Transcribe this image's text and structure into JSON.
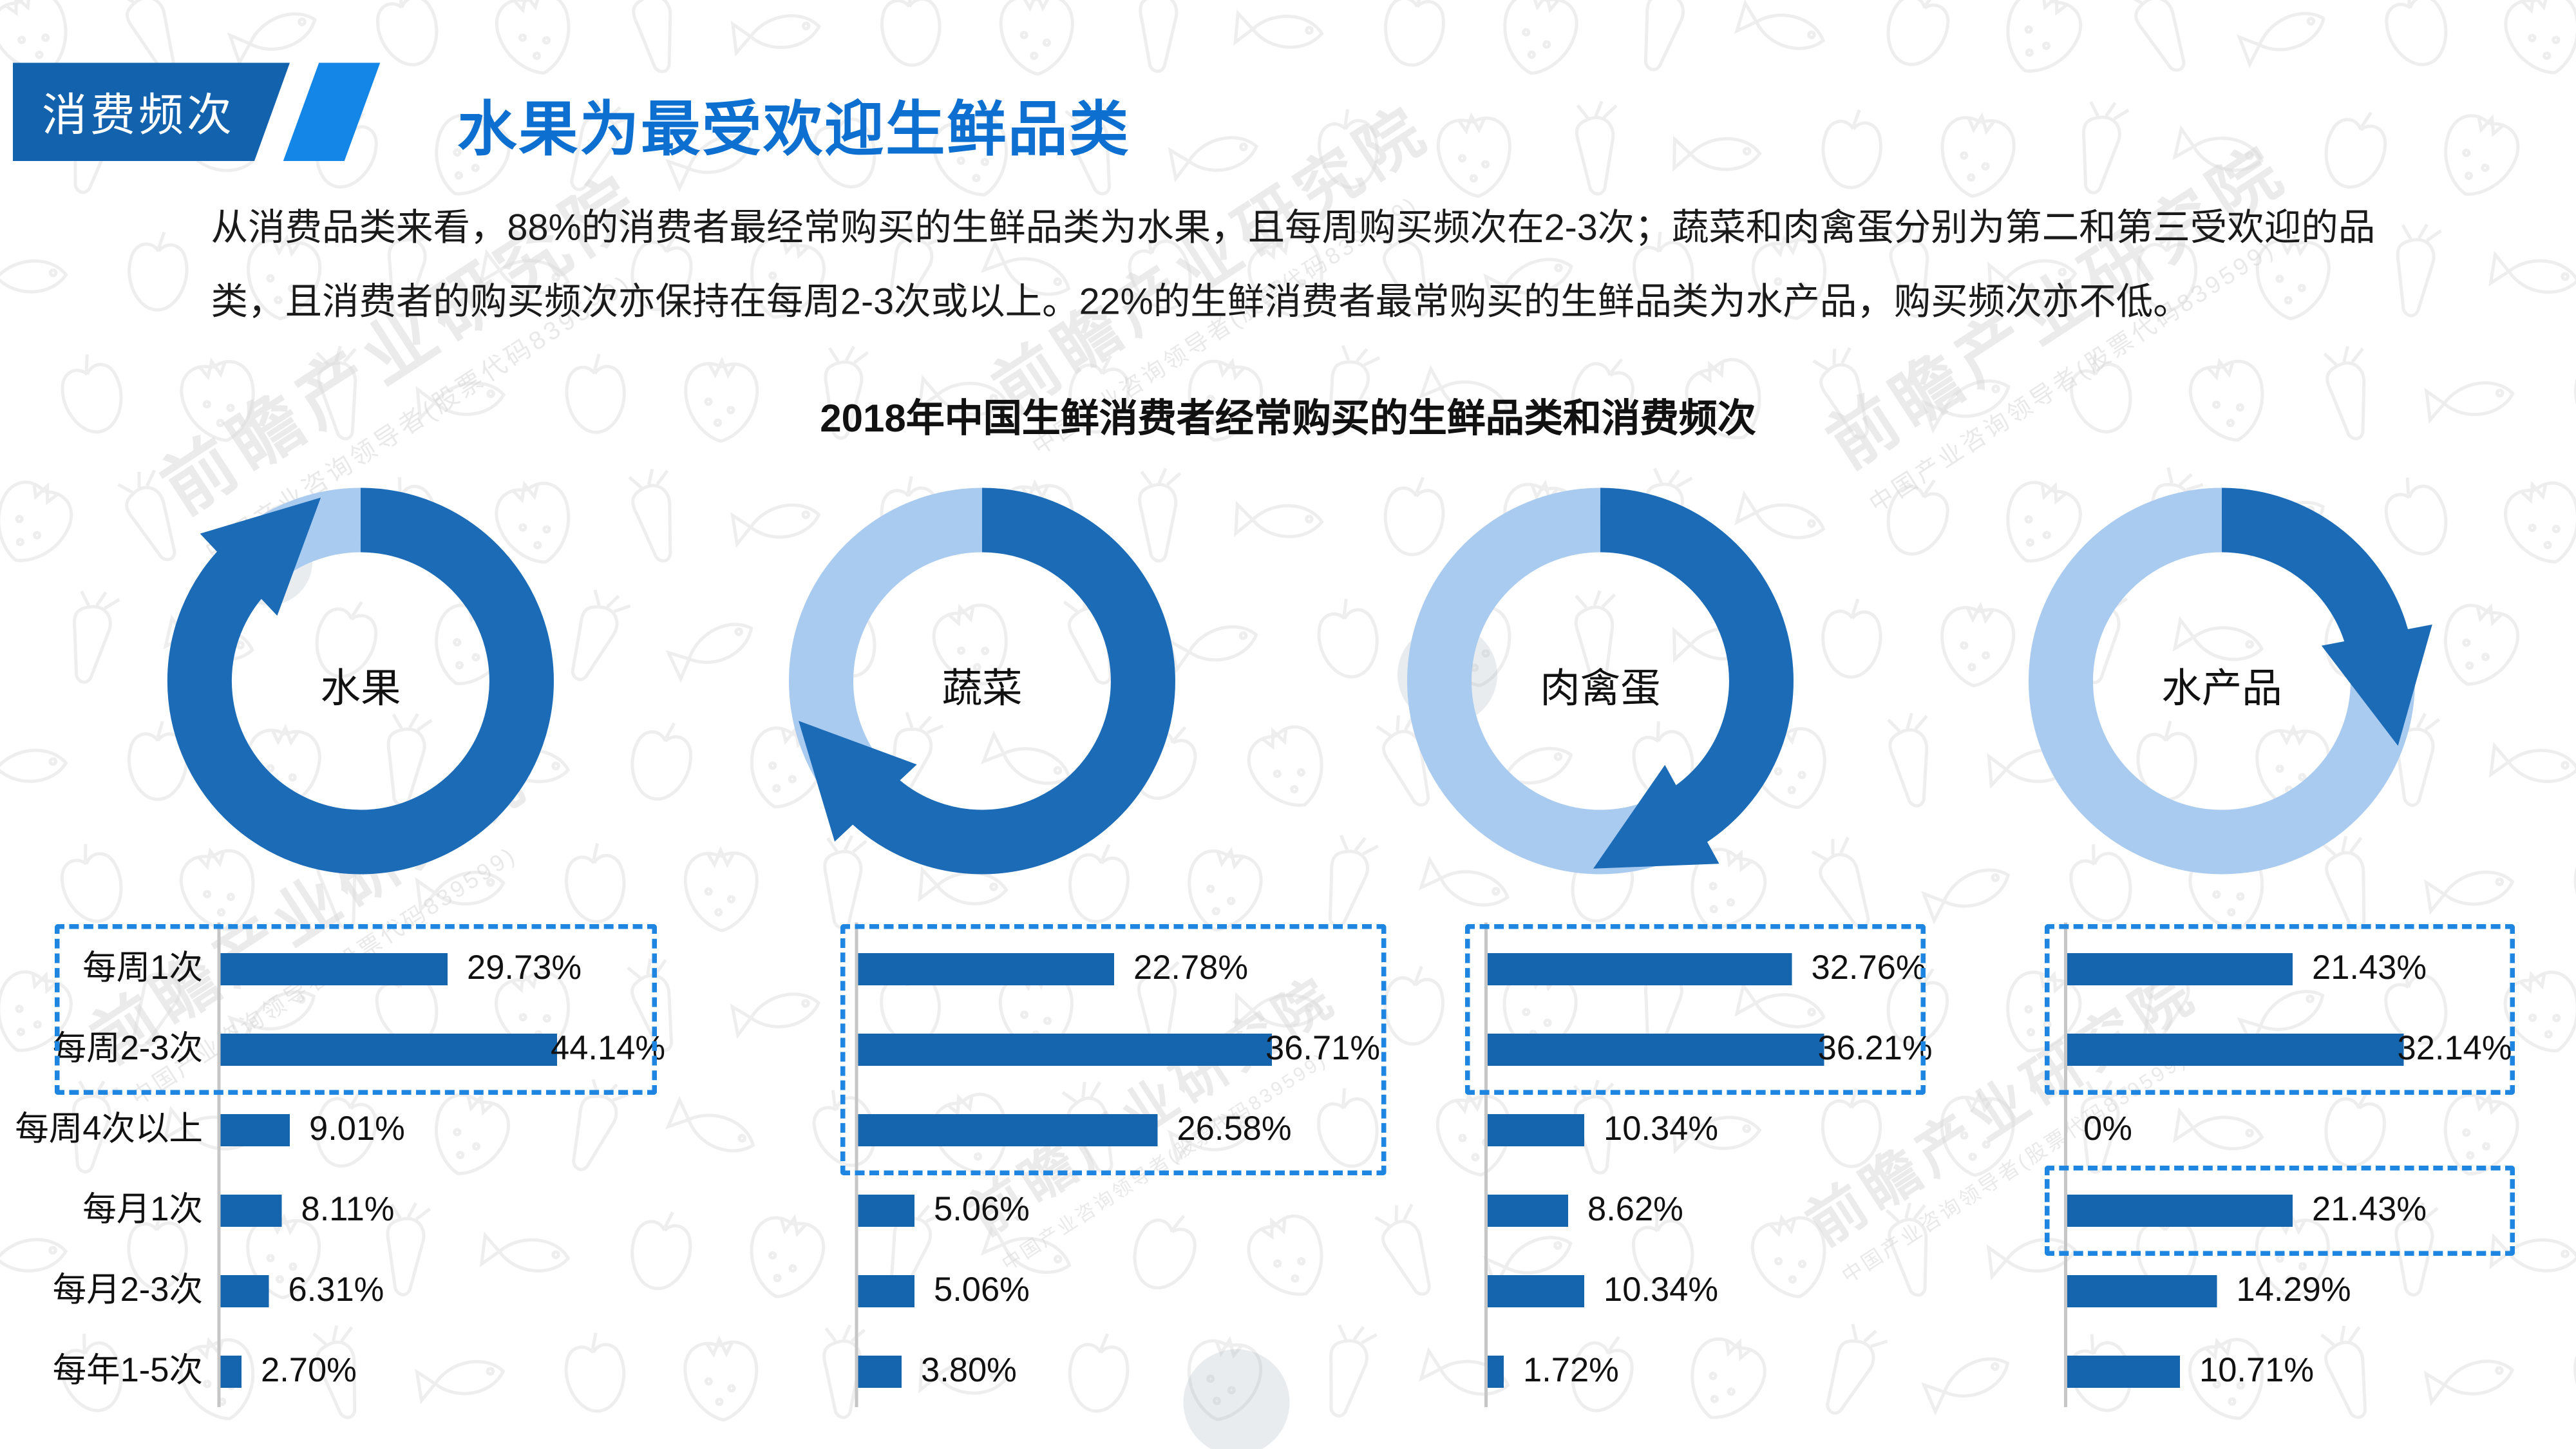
{
  "header": {
    "tag": "消费频次",
    "title": "水果为最受欢迎生鲜品类"
  },
  "intro": {
    "lines": [
      "从消费品类来看，88%的消费者最经常购买的生鲜品类为水果，且每周购买频次在2-3次；蔬菜和肉禽蛋分别为第二和第三受欢迎的品",
      "类，且消费者的购买频次亦保持在每周2-3次或以上。22%的生鲜消费者最常购买的生鲜品类为水产品，购买频次亦不低。"
    ]
  },
  "chart_data": {
    "type": "bar",
    "orientation": "horizontal",
    "title": "2018年中国生鲜消费者经常购买的生鲜品类和消费频次",
    "categories": [
      "每周1次",
      "每周2-3次",
      "每周4次以上",
      "每月1次",
      "每月2-3次",
      "每年1-5次"
    ],
    "value_suffix": "%",
    "series": [
      {
        "name": "水果",
        "ring_fraction": 0.88,
        "values": [
          29.73,
          44.14,
          9.01,
          8.11,
          6.31,
          2.7
        ],
        "highlighted_categories": [
          [
            0,
            1
          ]
        ]
      },
      {
        "name": "蔬菜",
        "ring_fraction": 0.63,
        "values": [
          22.78,
          36.71,
          26.58,
          5.06,
          5.06,
          3.8
        ],
        "highlighted_categories": [
          [
            0,
            2
          ]
        ]
      },
      {
        "name": "肉禽蛋",
        "ring_fraction": 0.42,
        "values": [
          32.76,
          36.21,
          10.34,
          8.62,
          10.34,
          1.72
        ],
        "highlighted_categories": [
          [
            0,
            1
          ]
        ]
      },
      {
        "name": "水产品",
        "ring_fraction": 0.22,
        "values": [
          21.43,
          32.14,
          0,
          21.43,
          14.29,
          10.71
        ],
        "highlighted_categories": [
          [
            0,
            1
          ],
          [
            3,
            3
          ]
        ]
      }
    ],
    "legend": "none",
    "grid": "off"
  },
  "watermark": {
    "brand": "前瞻产业研究院",
    "sub": "中国产业咨询领导者(股票代码839599)"
  },
  "colors": {
    "bar_blue": "#1565ae",
    "ring_dark": "#1b6bb7",
    "ring_light": "#aacbf0",
    "dashed_box": "#1e86e0",
    "badge_blue": "#1362ae",
    "stripe_blue": "#1486e8",
    "title_blue": "#0d6fd0",
    "axis_gray": "#c6c6c6",
    "text_dark": "#1a1a1a"
  }
}
